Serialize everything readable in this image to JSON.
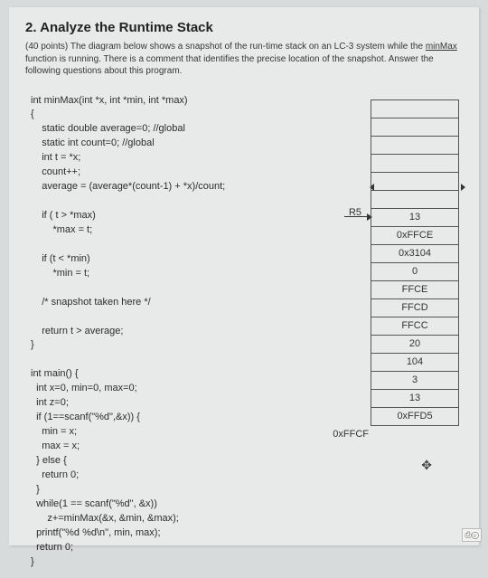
{
  "heading": "2. Analyze the Runtime Stack",
  "descPrefix": "(40 points) The diagram below shows a snapshot of the run-time stack on an LC-3 system while the ",
  "descFunc": "minMax",
  "descSuffix": " function is running. There is a comment that identifies the precise location of the snapshot. Answer the following questions about this program.",
  "code": {
    "l1": "int minMax(int *x, int *min, int *max)",
    "l2": "{",
    "l3": "    static double average=0; //global",
    "l4": "    static int count=0; //global",
    "l5": "    int t = *x;",
    "l6": "    count++;",
    "l7": "    average = (average*(count-1) + *x)/count;",
    "l8": "",
    "l9": "    if ( t > *max)",
    "l10": "        *max = t;",
    "l11": "",
    "l12": "    if (t < *min)",
    "l13": "        *min = t;",
    "l14": "",
    "l15": "    /* snapshot taken here */",
    "l16": "",
    "l17": "    return t > average;",
    "l18": "}",
    "l19": "",
    "l20": "int main() {",
    "l21": "  int x=0, min=0, max=0;",
    "l22": "  int z=0;",
    "l23": "  if (1==scanf(\"%d\",&x)) {",
    "l24": "    min = x;",
    "l25": "    max = x;",
    "l26": "  } else {",
    "l27": "    return 0;",
    "l28": "  }",
    "l29": "  while(1 == scanf(\"%d\", &x))",
    "l30": "      z+=minMax(&x, &min, &max);",
    "l31": "  printf(\"%d %d\\n\", min, max);",
    "l32": "  return 0;",
    "l33": "}"
  },
  "r5": "R5",
  "addr": "0xFFCF",
  "stack": [
    "",
    "",
    "",
    "",
    "",
    "",
    "13",
    "0xFFCE",
    "0x3104",
    "0",
    "FFCE",
    "FFCD",
    "FFCC",
    "20",
    "104",
    "3",
    "13",
    "0xFFD5"
  ]
}
